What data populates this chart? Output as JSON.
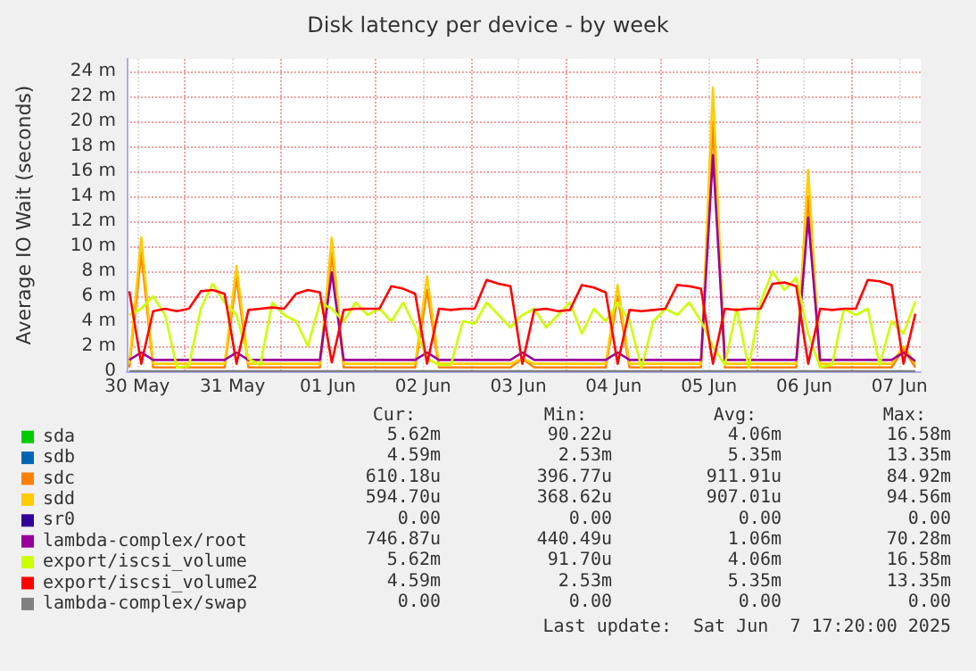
{
  "chart_data": {
    "type": "line",
    "title": "Disk latency per device - by week",
    "ylabel": "Average IO Wait (seconds)",
    "x": [
      "2025-05-30T10:00",
      "2025-05-30T13:00",
      "2025-05-30T16:00",
      "2025-05-30T19:00",
      "2025-05-30T22:00",
      "2025-05-31T01:00",
      "2025-05-31T04:00",
      "2025-05-31T07:00",
      "2025-05-31T10:00",
      "2025-05-31T13:00",
      "2025-05-31T16:00",
      "2025-05-31T19:00",
      "2025-05-31T22:00",
      "2025-06-01T01:00",
      "2025-06-01T04:00",
      "2025-06-01T07:00",
      "2025-06-01T10:00",
      "2025-06-01T13:00",
      "2025-06-01T16:00",
      "2025-06-01T19:00",
      "2025-06-01T22:00",
      "2025-06-02T01:00",
      "2025-06-02T04:00",
      "2025-06-02T07:00",
      "2025-06-02T10:00",
      "2025-06-02T13:00",
      "2025-06-02T16:00",
      "2025-06-02T19:00",
      "2025-06-02T22:00",
      "2025-06-03T01:00",
      "2025-06-03T04:00",
      "2025-06-03T07:00",
      "2025-06-03T10:00",
      "2025-06-03T13:00",
      "2025-06-03T16:00",
      "2025-06-03T19:00",
      "2025-06-03T22:00",
      "2025-06-04T01:00",
      "2025-06-04T04:00",
      "2025-06-04T07:00",
      "2025-06-04T10:00",
      "2025-06-04T13:00",
      "2025-06-04T16:00",
      "2025-06-04T19:00",
      "2025-06-04T22:00",
      "2025-06-05T01:00",
      "2025-06-05T04:00",
      "2025-06-05T07:00",
      "2025-06-05T10:00",
      "2025-06-05T13:00",
      "2025-06-05T16:00",
      "2025-06-05T19:00",
      "2025-06-05T22:00",
      "2025-06-06T01:00",
      "2025-06-06T04:00",
      "2025-06-06T07:00",
      "2025-06-06T10:00",
      "2025-06-06T13:00",
      "2025-06-06T16:00",
      "2025-06-06T19:00",
      "2025-06-06T22:00",
      "2025-06-07T01:00",
      "2025-06-07T04:00",
      "2025-06-07T07:00",
      "2025-06-07T10:00",
      "2025-06-07T13:00",
      "2025-06-07T16:00"
    ],
    "series": [
      {
        "name": "sda",
        "color": "#00cc00",
        "values": [
          null,
          null,
          null,
          null,
          null,
          null,
          null,
          null,
          null,
          null,
          null,
          null,
          null,
          null,
          null,
          null,
          null,
          null,
          null,
          null,
          null,
          null,
          null,
          null,
          null,
          null,
          null,
          null,
          null,
          null,
          null,
          null,
          null,
          null,
          null,
          null,
          null,
          null,
          null,
          null,
          null,
          null,
          null,
          null,
          null,
          null,
          null,
          null,
          null,
          null,
          null,
          null,
          null,
          null,
          null,
          null,
          null,
          null,
          null,
          null,
          null,
          null,
          null,
          null,
          null,
          null,
          null
        ]
      },
      {
        "name": "sdb",
        "color": "#0066b3",
        "values": [
          null,
          null,
          null,
          null,
          null,
          null,
          null,
          null,
          null,
          null,
          null,
          null,
          null,
          null,
          null,
          null,
          null,
          null,
          null,
          null,
          null,
          null,
          null,
          null,
          null,
          null,
          null,
          null,
          null,
          null,
          null,
          null,
          null,
          null,
          null,
          null,
          null,
          null,
          null,
          null,
          null,
          null,
          null,
          null,
          null,
          null,
          null,
          null,
          null,
          null,
          null,
          null,
          null,
          null,
          null,
          null,
          null,
          null,
          null,
          null,
          null,
          null,
          null,
          null,
          null,
          null,
          null
        ]
      },
      {
        "name": "sdc",
        "color": "#ff8000",
        "values": [
          0.3,
          9.5,
          0.3,
          0.3,
          0.3,
          0.3,
          0.3,
          0.3,
          0.3,
          7.5,
          0.3,
          0.3,
          0.3,
          0.3,
          0.3,
          0.3,
          0.3,
          9.5,
          0.3,
          0.3,
          0.3,
          0.3,
          0.3,
          0.3,
          0.3,
          6.5,
          0.3,
          0.3,
          0.3,
          0.3,
          0.3,
          0.3,
          0.3,
          1.0,
          0.3,
          0.3,
          0.3,
          0.3,
          0.3,
          0.3,
          0.3,
          6.0,
          0.3,
          0.3,
          0.3,
          0.3,
          0.3,
          0.3,
          0.3,
          20.0,
          0.3,
          0.3,
          0.3,
          0.3,
          0.3,
          0.3,
          0.3,
          14.0,
          0.3,
          0.3,
          0.3,
          0.3,
          0.3,
          0.3,
          0.3,
          1.8,
          0.3
        ]
      },
      {
        "name": "sdd",
        "color": "#ffcc00",
        "values": [
          0.6,
          10.7,
          0.6,
          0.6,
          0.6,
          0.6,
          0.6,
          0.6,
          0.6,
          8.4,
          0.6,
          0.6,
          0.6,
          0.6,
          0.6,
          0.6,
          0.6,
          10.7,
          0.6,
          0.6,
          0.6,
          0.6,
          0.6,
          0.6,
          0.6,
          7.6,
          0.6,
          0.6,
          0.6,
          0.6,
          0.6,
          0.6,
          0.6,
          1.0,
          0.6,
          0.6,
          0.6,
          0.6,
          0.6,
          0.6,
          0.6,
          6.9,
          0.6,
          0.6,
          0.6,
          0.6,
          0.6,
          0.6,
          0.6,
          22.7,
          0.6,
          0.6,
          0.6,
          0.6,
          0.6,
          0.6,
          0.6,
          16.1,
          0.6,
          0.6,
          0.6,
          0.6,
          0.6,
          0.6,
          0.6,
          2.0,
          0.6
        ]
      },
      {
        "name": "sr0",
        "color": "#330099",
        "values": [
          null,
          null,
          null,
          null,
          null,
          null,
          null,
          null,
          null,
          null,
          null,
          null,
          null,
          null,
          null,
          null,
          null,
          null,
          null,
          null,
          null,
          null,
          null,
          null,
          null,
          null,
          null,
          null,
          null,
          null,
          null,
          null,
          null,
          null,
          null,
          null,
          null,
          null,
          null,
          null,
          null,
          null,
          null,
          null,
          null,
          null,
          null,
          null,
          null,
          null,
          null,
          null,
          null,
          null,
          null,
          null,
          null,
          null,
          null,
          null,
          null,
          null,
          null,
          null,
          null,
          null,
          null
        ]
      },
      {
        "name": "lambda-complex/root",
        "color": "#990099",
        "values": [
          0.9,
          1.5,
          0.9,
          0.9,
          0.9,
          0.9,
          0.9,
          0.9,
          0.9,
          1.5,
          0.9,
          0.9,
          0.9,
          0.9,
          0.9,
          0.9,
          0.9,
          7.9,
          0.9,
          0.9,
          0.9,
          0.9,
          0.9,
          0.9,
          0.9,
          1.5,
          0.9,
          0.9,
          0.9,
          0.9,
          0.9,
          0.9,
          0.9,
          1.5,
          0.9,
          0.9,
          0.9,
          0.9,
          0.9,
          0.9,
          0.9,
          1.5,
          0.9,
          0.9,
          0.9,
          0.9,
          0.9,
          0.9,
          0.9,
          17.3,
          0.9,
          0.9,
          0.9,
          0.9,
          0.9,
          0.9,
          0.9,
          12.3,
          0.9,
          0.9,
          0.9,
          0.9,
          0.9,
          0.9,
          0.9,
          1.5,
          0.8
        ]
      },
      {
        "name": "export/iscsi_volume",
        "color": "#ccff00",
        "values": [
          4.5,
          5.0,
          6.0,
          4.5,
          0.3,
          0.4,
          5.0,
          7.0,
          5.5,
          4.5,
          1.0,
          0.5,
          5.5,
          4.5,
          4.0,
          2.0,
          5.5,
          5.0,
          4.0,
          5.5,
          4.5,
          5.0,
          4.0,
          5.5,
          3.5,
          1.0,
          0.5,
          0.5,
          4.0,
          3.8,
          5.5,
          4.5,
          3.5,
          4.5,
          5.0,
          3.5,
          4.5,
          5.5,
          3.0,
          5.0,
          4.0,
          5.5,
          4.0,
          0.3,
          4.0,
          5.0,
          4.5,
          5.5,
          4.0,
          2.0,
          0.5,
          5.0,
          0.3,
          5.5,
          8.0,
          6.5,
          7.5,
          3.0,
          0.3,
          0.5,
          5.0,
          4.5,
          5.0,
          0.5,
          4.0,
          3.0,
          5.6
        ]
      },
      {
        "name": "export/iscsi_volume2",
        "color": "#ff0000",
        "values": [
          6.4,
          0.6,
          4.8,
          5.0,
          4.8,
          5.0,
          6.4,
          6.5,
          6.2,
          0.6,
          4.9,
          5.0,
          5.1,
          5.0,
          6.2,
          6.5,
          6.3,
          0.7,
          4.9,
          5.0,
          5.0,
          5.0,
          6.8,
          6.6,
          6.2,
          0.6,
          5.0,
          4.9,
          5.0,
          5.0,
          7.3,
          7.0,
          6.8,
          0.6,
          4.9,
          5.0,
          4.8,
          4.9,
          6.9,
          6.7,
          6.3,
          0.6,
          4.9,
          4.8,
          4.9,
          5.0,
          6.9,
          6.8,
          6.6,
          0.6,
          5.0,
          4.9,
          5.0,
          5.0,
          7.0,
          7.1,
          6.8,
          0.6,
          5.0,
          4.9,
          5.0,
          5.0,
          7.3,
          7.2,
          6.9,
          0.6,
          4.6
        ]
      },
      {
        "name": "lambda-complex/swap",
        "color": "#808080",
        "values": [
          0,
          0,
          0,
          0,
          0,
          0,
          0,
          0,
          0,
          0,
          0,
          0,
          0,
          0,
          0,
          0,
          0,
          0,
          0,
          0,
          0,
          0,
          0,
          0,
          0,
          0,
          0,
          0,
          0,
          0,
          0,
          0,
          0,
          0,
          0,
          0,
          0,
          0,
          0,
          0,
          0,
          0,
          0,
          0,
          0,
          0,
          0,
          0,
          0,
          0,
          0,
          0,
          0,
          0,
          0,
          0,
          0,
          0,
          0,
          0,
          0,
          0,
          0,
          0,
          0,
          0,
          0
        ]
      }
    ],
    "xlim": [
      "2025-05-30T09:20",
      "2025-06-07T17:20"
    ],
    "xticks": [
      {
        "value": "2025-05-30T12:00",
        "label": "30 May"
      },
      {
        "value": "2025-05-31T00:00",
        "label": null
      },
      {
        "value": "2025-05-31T12:00",
        "label": "31 May"
      },
      {
        "value": "2025-06-01T00:00",
        "label": null
      },
      {
        "value": "2025-06-01T12:00",
        "label": "01 Jun"
      },
      {
        "value": "2025-06-02T00:00",
        "label": null
      },
      {
        "value": "2025-06-02T12:00",
        "label": "02 Jun"
      },
      {
        "value": "2025-06-03T00:00",
        "label": null
      },
      {
        "value": "2025-06-03T12:00",
        "label": "03 Jun"
      },
      {
        "value": "2025-06-04T00:00",
        "label": null
      },
      {
        "value": "2025-06-04T12:00",
        "label": "04 Jun"
      },
      {
        "value": "2025-06-05T00:00",
        "label": null
      },
      {
        "value": "2025-06-05T12:00",
        "label": "05 Jun"
      },
      {
        "value": "2025-06-06T00:00",
        "label": null
      },
      {
        "value": "2025-06-06T12:00",
        "label": "06 Jun"
      },
      {
        "value": "2025-06-07T00:00",
        "label": null
      },
      {
        "value": "2025-06-07T12:00",
        "label": "07 Jun"
      }
    ],
    "ylim": [
      0,
      25
    ],
    "yticks": [
      0,
      {
        "value": 2,
        "label": "2 m"
      },
      {
        "value": 4,
        "label": "4 m"
      },
      {
        "value": 6,
        "label": "6 m"
      },
      {
        "value": 8,
        "label": "8 m"
      },
      {
        "value": 10,
        "label": "10 m"
      },
      {
        "value": 12,
        "label": "12 m"
      },
      {
        "value": 14,
        "label": "14 m"
      },
      {
        "value": 16,
        "label": "16 m"
      },
      {
        "value": 18,
        "label": "18 m"
      },
      {
        "value": 20,
        "label": "20 m"
      },
      {
        "value": 22,
        "label": "22 m"
      },
      {
        "value": 24,
        "label": "24 m"
      }
    ],
    "grid": true,
    "legend": "bottom left",
    "marker": "none",
    "line_style": "solid",
    "annotations": [
      "Cur:",
      "Min:",
      "Avg:",
      "Max:",
      "5.62m",
      "90.22u",
      "4.06m",
      "16.58m",
      "4.59m",
      "2.53m",
      "5.35m",
      "13.35m",
      "610.18u",
      "396.77u",
      "911.91u",
      "84.92m",
      "594.70u",
      "368.62u",
      "907.01u",
      "94.56m",
      "0.00",
      "0.00",
      "0.00",
      "0.00",
      "746.87u",
      "440.49u",
      "1.06m",
      "70.28m",
      "5.62m",
      "91.70u",
      "4.06m",
      "16.58m",
      "4.59m",
      "2.53m",
      "5.35m",
      "13.35m",
      "0.00",
      "0.00",
      "0.00",
      "0.00",
      "Last update:  Sat Jun  7 17:20:00 2025"
    ]
  }
}
